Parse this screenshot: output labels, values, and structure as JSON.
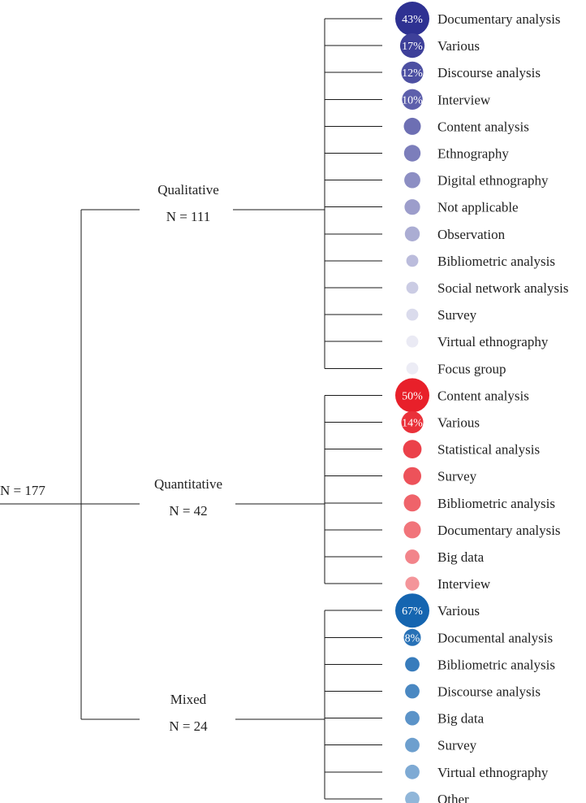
{
  "root": {
    "label": "N = 177"
  },
  "groups": [
    {
      "name": "Qualitative",
      "n_label": "N = 111",
      "color": "#2e3192",
      "items": [
        {
          "label": "Documentary analysis",
          "value": 43,
          "pct_label": "43%"
        },
        {
          "label": "Various",
          "value": 17,
          "pct_label": "17%"
        },
        {
          "label": "Discourse analysis",
          "value": 12,
          "pct_label": "12%"
        },
        {
          "label": "Interview",
          "value": 10,
          "pct_label": "10%"
        },
        {
          "label": "Content analysis",
          "value": 5
        },
        {
          "label": "Ethnography",
          "value": 4.5
        },
        {
          "label": "Digital ethnography",
          "value": 4
        },
        {
          "label": "Not applicable",
          "value": 3.5
        },
        {
          "label": "Observation",
          "value": 3
        },
        {
          "label": "Bibliometric analysis",
          "value": 1
        },
        {
          "label": "Social network analysis",
          "value": 1
        },
        {
          "label": "Survey",
          "value": 1
        },
        {
          "label": "Virtual ethnography",
          "value": 1
        },
        {
          "label": "Focus group",
          "value": 1
        }
      ]
    },
    {
      "name": "Quantitative",
      "n_label": "N = 42",
      "color": "#e8202a",
      "items": [
        {
          "label": "Content analysis",
          "value": 50,
          "pct_label": "50%"
        },
        {
          "label": "Various",
          "value": 14,
          "pct_label": "14%"
        },
        {
          "label": "Statistical analysis",
          "value": 8
        },
        {
          "label": "Survey",
          "value": 7
        },
        {
          "label": "Bibliometric analysis",
          "value": 6
        },
        {
          "label": "Documentary analysis",
          "value": 6
        },
        {
          "label": "Big data",
          "value": 3
        },
        {
          "label": "Interview",
          "value": 2.5
        }
      ]
    },
    {
      "name": "Mixed",
      "n_label": "N = 24",
      "color": "#1565b0",
      "items": [
        {
          "label": "Various",
          "value": 67,
          "pct_label": "67%"
        },
        {
          "label": "Documental analysis",
          "value": 8,
          "pct_label": "8%"
        },
        {
          "label": "Bibliometric analysis",
          "value": 4
        },
        {
          "label": "Discourse analysis",
          "value": 4
        },
        {
          "label": "Big data",
          "value": 4
        },
        {
          "label": "Survey",
          "value": 4
        },
        {
          "label": "Virtual ethnography",
          "value": 4
        },
        {
          "label": "Other",
          "value": 4
        }
      ]
    }
  ]
}
